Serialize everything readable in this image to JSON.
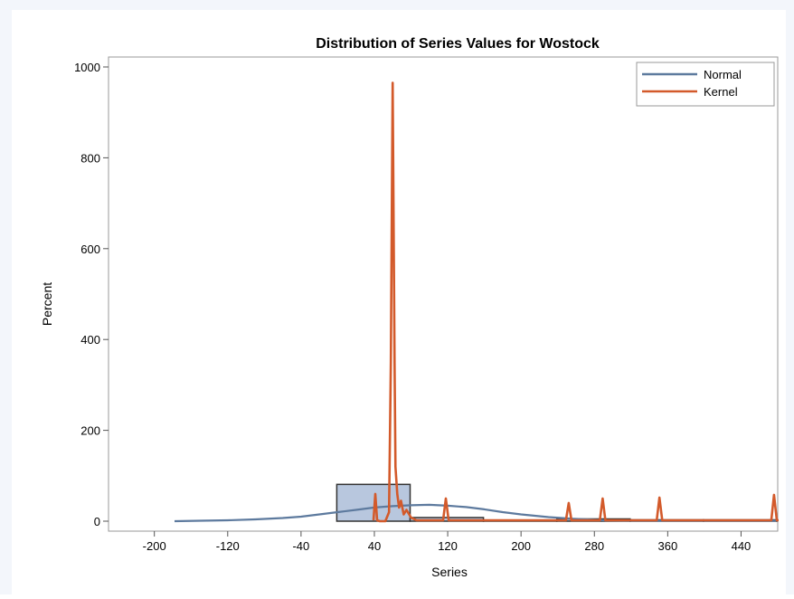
{
  "chart_data": {
    "type": "histogram",
    "title": "Distribution of Series Values for Wostock",
    "xlabel": "Series",
    "ylabel": "Percent",
    "xlim": [
      -250,
      480
    ],
    "ylim": [
      0,
      1000
    ],
    "x_ticks": [
      -200,
      -120,
      -40,
      40,
      120,
      200,
      280,
      360,
      440
    ],
    "y_ticks": [
      0,
      200,
      400,
      600,
      800,
      1000
    ],
    "bins": [
      {
        "x0": -1,
        "x1": 79,
        "value": 81
      },
      {
        "x0": 79,
        "x1": 159,
        "value": 8
      },
      {
        "x0": 159,
        "x1": 239,
        "value": 2
      },
      {
        "x0": 239,
        "x1": 319,
        "value": 5
      },
      {
        "x0": 319,
        "x1": 399,
        "value": 3
      },
      {
        "x0": 399,
        "x1": 479,
        "value": 3
      }
    ],
    "series": [
      {
        "name": "Normal",
        "color": "#5d7a9e",
        "x": [
          -178,
          -150,
          -120,
          -90,
          -60,
          -40,
          -20,
          0,
          20,
          40,
          60,
          80,
          100,
          120,
          140,
          160,
          180,
          200,
          230,
          260,
          290,
          320,
          350,
          380,
          420,
          478
        ],
        "y": [
          0,
          1,
          2,
          4,
          7,
          10,
          15,
          20,
          25,
          30,
          33,
          35,
          36,
          34,
          31,
          26,
          20,
          15,
          9,
          5,
          2,
          1,
          1,
          1,
          1,
          1
        ]
      },
      {
        "name": "Kernel",
        "color": "#d35a2b",
        "x": [
          39,
          41,
          43,
          46,
          52,
          56,
          58,
          60,
          62,
          63,
          65,
          67,
          69,
          72,
          75,
          80,
          86,
          92,
          110,
          115,
          118,
          121,
          125,
          150,
          200,
          240,
          249,
          252,
          255,
          259,
          283,
          286,
          289,
          292,
          296,
          345,
          348,
          351,
          354,
          358,
          470,
          473,
          476,
          479,
          481
        ],
        "y": [
          2,
          60,
          2,
          0,
          0,
          20,
          350,
          965,
          350,
          120,
          60,
          30,
          45,
          15,
          25,
          8,
          2,
          2,
          2,
          2,
          50,
          2,
          2,
          2,
          2,
          2,
          2,
          40,
          2,
          2,
          2,
          2,
          50,
          2,
          2,
          2,
          2,
          52,
          2,
          2,
          2,
          2,
          58,
          2,
          2
        ]
      }
    ],
    "legend": {
      "position": "top-right",
      "entries": [
        "Normal",
        "Kernel"
      ]
    },
    "grid": false
  }
}
